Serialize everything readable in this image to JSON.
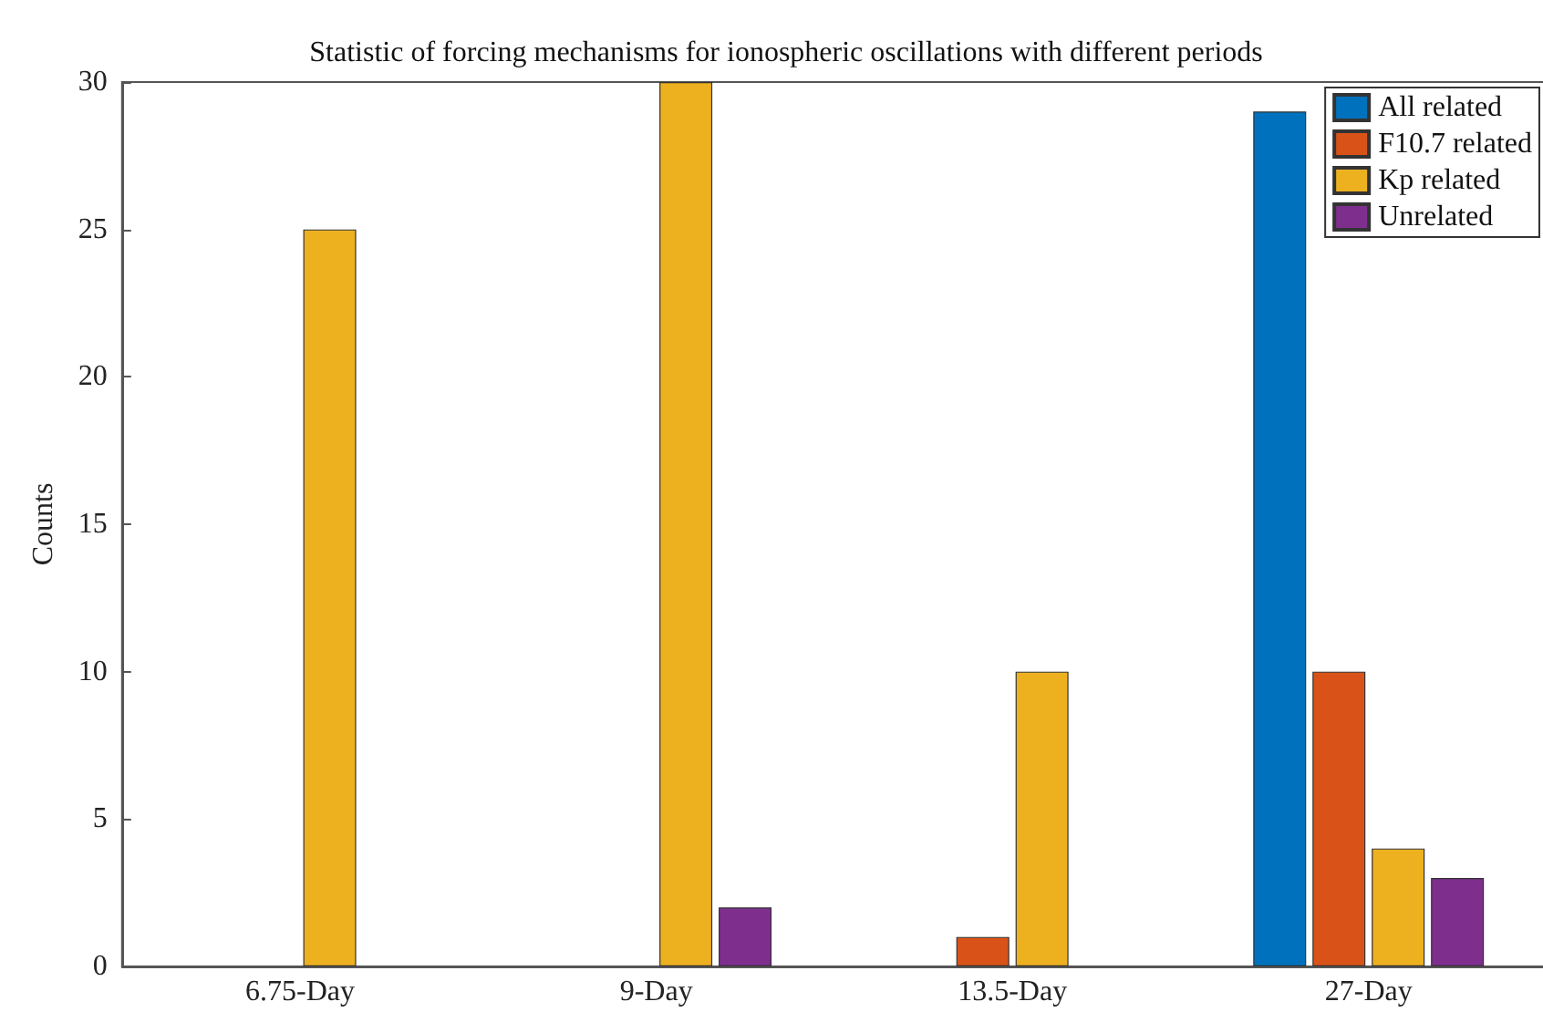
{
  "chart_data": {
    "type": "bar",
    "title": "Statistic of forcing mechanisms for ionospheric oscillations with different periods",
    "ylabel": "Counts",
    "categories": [
      "6.75-Day",
      "9-Day",
      "13.5-Day",
      "27-Day"
    ],
    "series": [
      {
        "name": "All related",
        "color": "#0072bd",
        "values": [
          0,
          0,
          0,
          29
        ]
      },
      {
        "name": "F10.7 related",
        "color": "#d95319",
        "values": [
          0,
          0,
          1,
          10
        ]
      },
      {
        "name": "Kp related",
        "color": "#edb120",
        "values": [
          25,
          30,
          10,
          4
        ]
      },
      {
        "name": "Unrelated",
        "color": "#7e2f8e",
        "values": [
          0,
          2,
          0,
          3
        ]
      }
    ],
    "ylim": [
      0,
      30
    ],
    "yticks": [
      0,
      5,
      10,
      15,
      20,
      25,
      30
    ],
    "legend": "top right",
    "grid": false
  }
}
